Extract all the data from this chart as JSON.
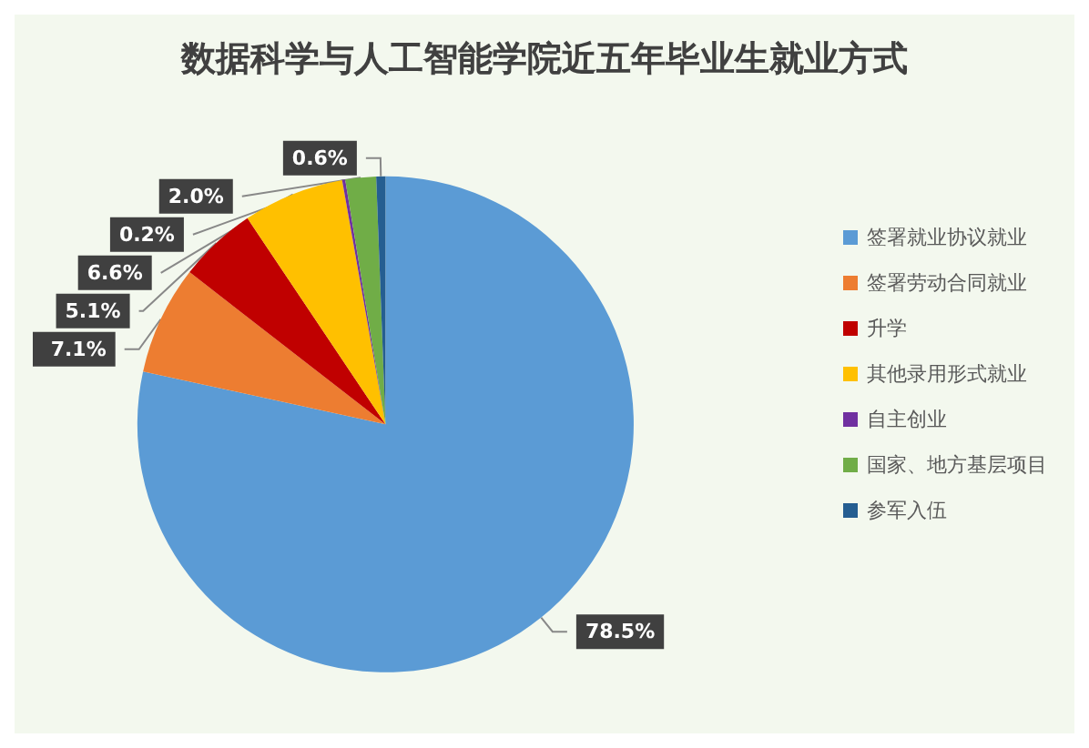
{
  "chart_data": {
    "type": "pie",
    "title": "数据科学与人工智能学院近五年毕业生就业方式",
    "categories": [
      "签署就业协议就业",
      "签署劳动合同就业",
      "升学",
      "其他录用形式就业",
      "自主创业",
      "国家、地方基层项目",
      "参军入伍"
    ],
    "values": [
      78.5,
      7.1,
      5.1,
      6.6,
      0.2,
      2.0,
      0.6
    ],
    "value_labels": [
      "78.5%",
      "7.1%",
      "5.1%",
      "6.6%",
      "0.2%",
      "2.0%",
      "0.6%"
    ],
    "colors": [
      "#5b9bd5",
      "#ed7d31",
      "#c00000",
      "#ffc000",
      "#7030a0",
      "#70ad47",
      "#255e91"
    ],
    "legend": "right"
  }
}
